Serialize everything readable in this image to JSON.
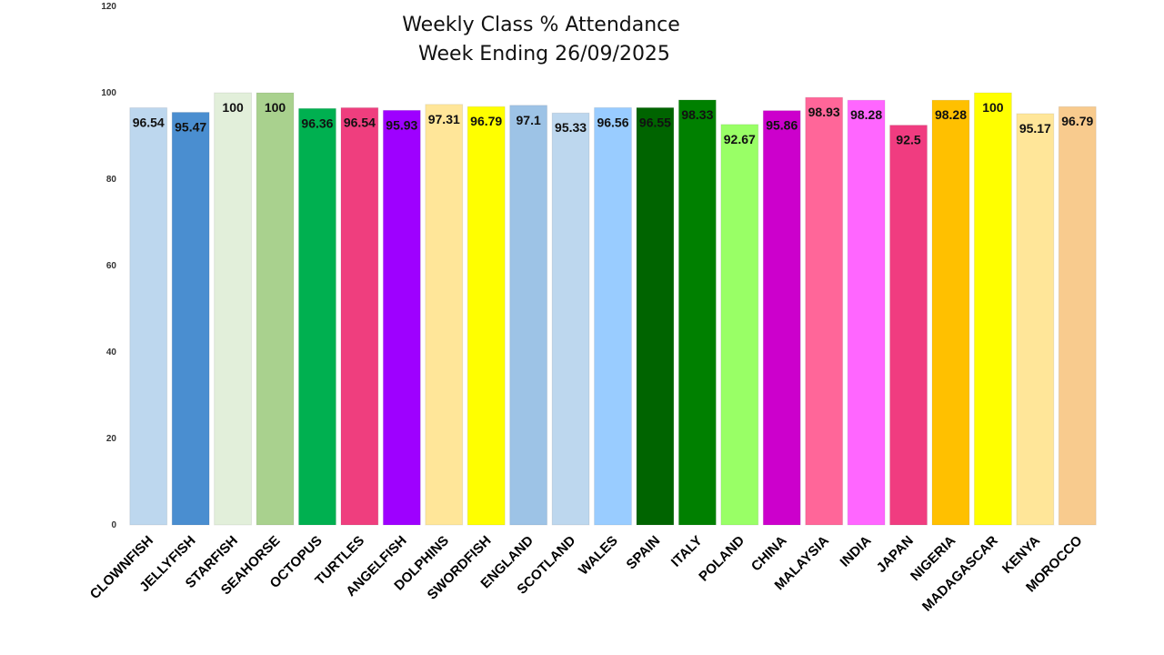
{
  "chart_data": {
    "type": "bar",
    "title_lines": [
      "Weekly Class % Attendance",
      " Week Ending 26/09/2025"
    ],
    "xlabel": "",
    "ylabel": "",
    "ylim": [
      0,
      120
    ],
    "yticks": [
      "0",
      "20",
      "40",
      "60",
      "80",
      "100",
      "120"
    ],
    "grid": false,
    "legend": "none",
    "categories": [
      "CLOWNFISH",
      "JELLYFISH",
      "STARFISH",
      "SEAHORSE",
      "OCTOPUS",
      "TURTLES",
      "ANGELFISH",
      "DOLPHINS",
      "SWORDFISH",
      "ENGLAND",
      "SCOTLAND",
      "WALES",
      "SPAIN",
      "ITALY",
      "POLAND",
      "CHINA",
      "MALAYSIA",
      "INDIA",
      "JAPAN",
      "NIGERIA",
      "MADAGASCAR",
      "KENYA",
      "MOROCCO"
    ],
    "values": [
      96.54,
      95.47,
      100,
      100,
      96.36,
      96.54,
      95.93,
      97.31,
      96.79,
      97.1,
      95.33,
      96.56,
      96.55,
      98.33,
      92.67,
      95.86,
      98.93,
      98.28,
      92.5,
      98.28,
      100,
      95.17,
      96.79
    ],
    "data_labels": [
      "96.54",
      "95.47",
      "100",
      "100",
      "96.36",
      "96.54",
      "95.93",
      "97.31",
      "96.79",
      "97.1",
      "95.33",
      "96.56",
      "96.55",
      "98.33",
      "92.67",
      "95.86",
      "98.93",
      "98.28",
      "92.5",
      "98.28",
      "100",
      "95.17",
      "96.79"
    ],
    "colors": [
      "#bdd7ee",
      "#4a8ed0",
      "#e2efda",
      "#a9d18e",
      "#00b050",
      "#ef3e7e",
      "#9e00ff",
      "#ffe699",
      "#ffff00",
      "#9dc3e6",
      "#bdd7ee",
      "#99ccff",
      "#006400",
      "#008000",
      "#99ff66",
      "#cc00cc",
      "#ff6699",
      "#ff66ff",
      "#f03c80",
      "#ffc000",
      "#ffff00",
      "#ffe699",
      "#f8cb8e"
    ]
  }
}
